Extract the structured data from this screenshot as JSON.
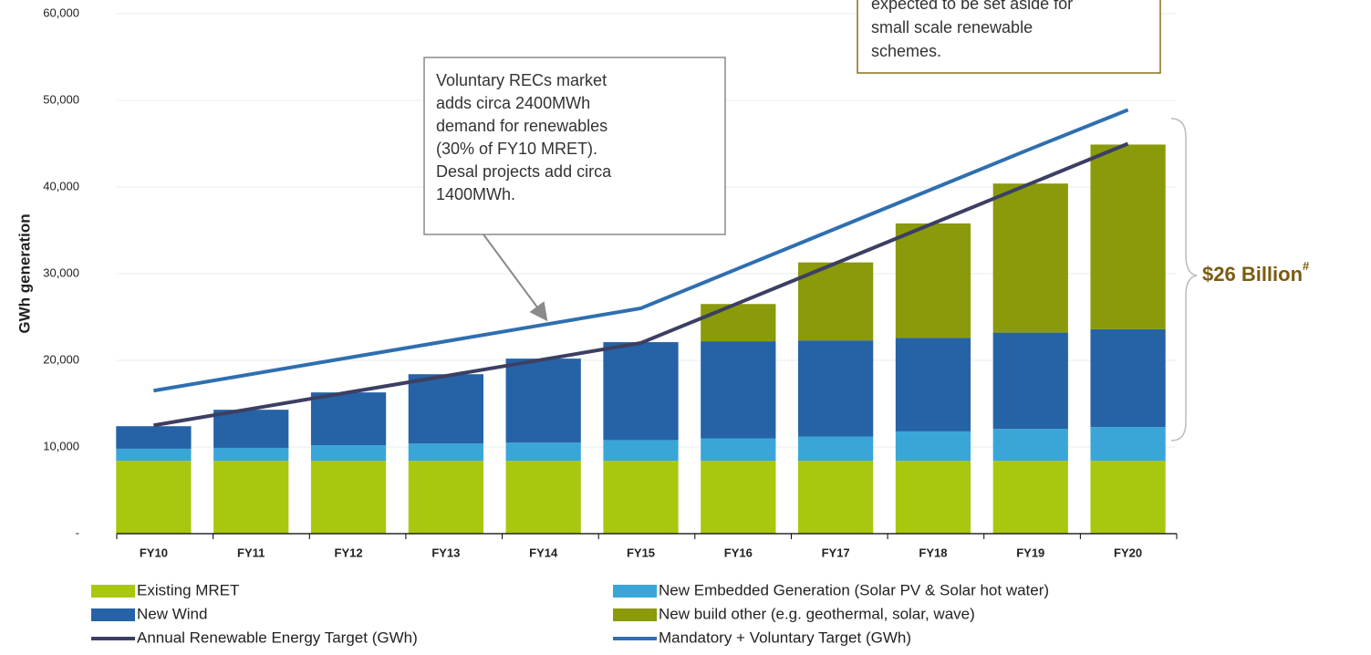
{
  "chart_data": {
    "type": "bar",
    "stacked": true,
    "y_axis_label": "GWh generation",
    "categories": [
      "FY10",
      "FY11",
      "FY12",
      "FY13",
      "FY14",
      "FY15",
      "FY16",
      "FY17",
      "FY18",
      "FY19",
      "FY20"
    ],
    "series": [
      {
        "name": "Existing MRET",
        "color": "#a8c80f",
        "values": [
          8400,
          8400,
          8400,
          8400,
          8400,
          8400,
          8400,
          8400,
          8400,
          8400,
          8400
        ]
      },
      {
        "name": "New Embedded Generation (Solar PV & Solar hot water)",
        "color": "#3aa6d8",
        "values": [
          1400,
          1500,
          1800,
          2000,
          2100,
          2400,
          2600,
          2800,
          3400,
          3700,
          3900
        ]
      },
      {
        "name": "New Wind",
        "color": "#2563a6",
        "values": [
          2600,
          4400,
          6100,
          8000,
          9700,
          11300,
          11200,
          11100,
          10800,
          11100,
          11300
        ]
      },
      {
        "name": "New build other (e.g. geothermal, solar, wave)",
        "color": "#8a9a0a",
        "values": [
          null,
          null,
          null,
          null,
          null,
          null,
          4300,
          9000,
          13200,
          17200,
          21300
        ]
      },
      {
        "name": "Annual Renewable Energy Target (GWh)",
        "type": "line",
        "color": "#3c3f63",
        "values": [
          12500,
          14400,
          16300,
          18200,
          20100,
          22000,
          26600,
          31200,
          35800,
          40400,
          45000
        ]
      },
      {
        "name": "Mandatory + Voluntary Target (GWh)",
        "type": "line",
        "color": "#2f6fb0",
        "values": [
          16500,
          18400,
          20300,
          22200,
          24100,
          26000,
          30600,
          35200,
          39800,
          44400,
          48900
        ]
      }
    ],
    "ylim": [
      0,
      60000
    ],
    "yticks": [
      {
        "value": 0,
        "label": "-"
      },
      {
        "value": 10000,
        "label": "10,000"
      },
      {
        "value": 20000,
        "label": "20,000"
      },
      {
        "value": 30000,
        "label": "30,000"
      },
      {
        "value": 40000,
        "label": "40,000"
      },
      {
        "value": 50000,
        "label": "50,000"
      },
      {
        "value": 60000,
        "label": "60,000"
      }
    ],
    "grid": true,
    "legend": "bottom",
    "annotations": [
      {
        "text": [
          "Voluntary RECs market",
          "adds circa 2400MWh",
          "demand for renewables",
          "(30% of FY10 MRET).",
          "Desal projects add circa",
          "1400MWh."
        ]
      },
      {
        "text": [
          "expected to be set aside for",
          "small scale renewable",
          "schemes."
        ]
      }
    ],
    "brace_label": "$26 Billion",
    "brace_label_sup": "#"
  }
}
